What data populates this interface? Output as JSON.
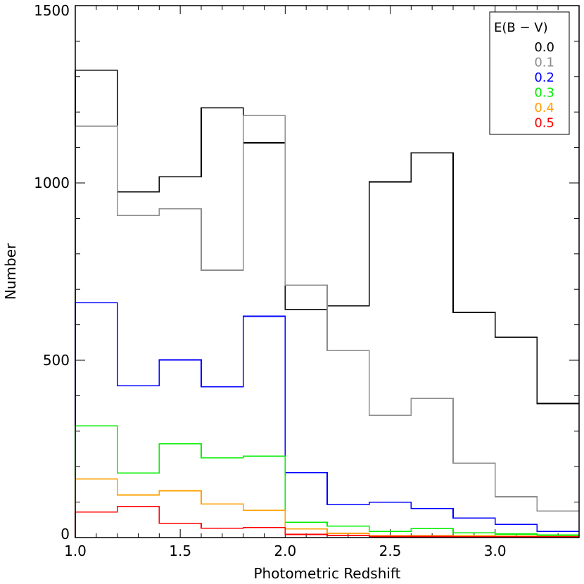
{
  "chart_data": {
    "type": "step-histogram",
    "xlabel": "Photometric Redshift",
    "ylabel": "Number",
    "xlim": [
      1.0,
      3.4
    ],
    "ylim": [
      0,
      1500
    ],
    "x_ticks": [
      1.0,
      1.5,
      2.0,
      2.5,
      3.0
    ],
    "x_tick_labels": [
      "1.0",
      "1.5",
      "2.0",
      "2.5",
      "3.0"
    ],
    "x_minor_step": 0.1,
    "y_ticks": [
      0,
      500,
      1000,
      1500
    ],
    "y_tick_labels": [
      "0",
      "500",
      "1000",
      "1500"
    ],
    "y_minor_step": 100,
    "bin_edges": [
      1.0,
      1.2,
      1.4,
      1.6,
      1.8,
      2.0,
      2.2,
      2.4,
      2.6,
      2.8,
      3.0,
      3.2,
      3.4
    ],
    "legend": {
      "title": "E(B − V)",
      "position": "top-right"
    },
    "series": [
      {
        "name": "0.0",
        "color": "#000000",
        "values": [
          1318,
          975,
          1017,
          1212,
          1113,
          643,
          653,
          1003,
          1085,
          635,
          565,
          378
        ]
      },
      {
        "name": "0.1",
        "color": "#8c8c8c",
        "values": [
          1160,
          908,
          927,
          754,
          1190,
          712,
          527,
          345,
          392,
          210,
          115,
          75
        ]
      },
      {
        "name": "0.2",
        "color": "#0000ff",
        "values": [
          662,
          428,
          501,
          425,
          624,
          183,
          93,
          100,
          82,
          55,
          37,
          17
        ]
      },
      {
        "name": "0.3",
        "color": "#00ee00",
        "values": [
          315,
          182,
          264,
          225,
          230,
          43,
          32,
          17,
          25,
          13,
          10,
          7
        ]
      },
      {
        "name": "0.4",
        "color": "#ffa000",
        "values": [
          165,
          120,
          132,
          95,
          77,
          24,
          12,
          5,
          5,
          5,
          4,
          3
        ]
      },
      {
        "name": "0.5",
        "color": "#ff0000",
        "values": [
          72,
          88,
          40,
          26,
          28,
          9,
          6,
          3,
          3,
          2,
          2,
          2
        ]
      }
    ]
  }
}
